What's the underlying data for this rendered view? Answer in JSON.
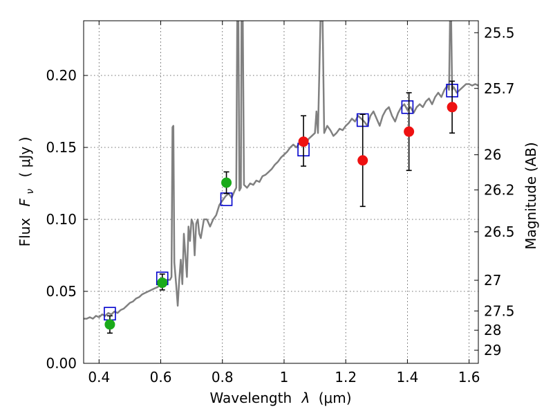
{
  "chart_data": {
    "type": "scatter",
    "xlabel_text": "Wavelength",
    "xlabel_symbol": "λ",
    "xlabel_unit": "(μm)",
    "ylabel_text": "Flux",
    "ylabel_symbol": "F",
    "ylabel_subscript": "ν",
    "ylabel_unit": "( μJy )",
    "y2label": "Magnitude (AB)",
    "xlim": [
      0.35,
      1.63
    ],
    "ylim": [
      0.0,
      0.238
    ],
    "x_ticks": [
      0.4,
      0.6,
      0.8,
      1.0,
      1.2,
      1.4,
      1.6
    ],
    "x_tick_labels": [
      "0.4",
      "0.6",
      "0.8",
      "1",
      "1.2",
      "1.4",
      "1.6"
    ],
    "y_ticks": [
      0.0,
      0.05,
      0.1,
      0.15,
      0.2
    ],
    "y_tick_labels": [
      "0.00",
      "0.05",
      "0.10",
      "0.15",
      "0.20"
    ],
    "y2_ticks": [
      {
        "label": "25.5",
        "flux": 0.2297
      },
      {
        "label": "25.7",
        "flux": 0.191
      },
      {
        "label": "26",
        "flux": 0.1449
      },
      {
        "label": "26.2",
        "flux": 0.1205
      },
      {
        "label": "26.5",
        "flux": 0.0914
      },
      {
        "label": "27",
        "flux": 0.0577
      },
      {
        "label": "27.5",
        "flux": 0.0364
      },
      {
        "label": "28",
        "flux": 0.023
      },
      {
        "label": "29",
        "flux": 0.0091
      }
    ],
    "grid": true,
    "series": [
      {
        "kind": "line",
        "color": "#808080",
        "points": [
          [
            0.35,
            0.031
          ],
          [
            0.36,
            0.031
          ],
          [
            0.37,
            0.032
          ],
          [
            0.38,
            0.031
          ],
          [
            0.39,
            0.033
          ],
          [
            0.4,
            0.032
          ],
          [
            0.41,
            0.034
          ],
          [
            0.42,
            0.033
          ],
          [
            0.43,
            0.035
          ],
          [
            0.44,
            0.034
          ],
          [
            0.45,
            0.036
          ],
          [
            0.46,
            0.035
          ],
          [
            0.47,
            0.037
          ],
          [
            0.48,
            0.038
          ],
          [
            0.49,
            0.04
          ],
          [
            0.5,
            0.042
          ],
          [
            0.51,
            0.043
          ],
          [
            0.52,
            0.045
          ],
          [
            0.53,
            0.046
          ],
          [
            0.54,
            0.048
          ],
          [
            0.55,
            0.049
          ],
          [
            0.56,
            0.05
          ],
          [
            0.57,
            0.051
          ],
          [
            0.58,
            0.052
          ],
          [
            0.59,
            0.053
          ],
          [
            0.6,
            0.055
          ],
          [
            0.61,
            0.057
          ],
          [
            0.62,
            0.058
          ],
          [
            0.63,
            0.058
          ],
          [
            0.635,
            0.06
          ],
          [
            0.638,
            0.164
          ],
          [
            0.641,
            0.165
          ],
          [
            0.644,
            0.07
          ],
          [
            0.65,
            0.055
          ],
          [
            0.655,
            0.04
          ],
          [
            0.66,
            0.058
          ],
          [
            0.665,
            0.072
          ],
          [
            0.67,
            0.055
          ],
          [
            0.675,
            0.09
          ],
          [
            0.68,
            0.075
          ],
          [
            0.685,
            0.06
          ],
          [
            0.69,
            0.095
          ],
          [
            0.695,
            0.085
          ],
          [
            0.7,
            0.1
          ],
          [
            0.705,
            0.097
          ],
          [
            0.71,
            0.075
          ],
          [
            0.715,
            0.097
          ],
          [
            0.72,
            0.1
          ],
          [
            0.725,
            0.09
          ],
          [
            0.73,
            0.087
          ],
          [
            0.74,
            0.1
          ],
          [
            0.75,
            0.1
          ],
          [
            0.76,
            0.095
          ],
          [
            0.77,
            0.1
          ],
          [
            0.78,
            0.103
          ],
          [
            0.79,
            0.11
          ],
          [
            0.8,
            0.113
          ],
          [
            0.81,
            0.116
          ],
          [
            0.82,
            0.118
          ],
          [
            0.83,
            0.115
          ],
          [
            0.84,
            0.12
          ],
          [
            0.845,
            0.122
          ],
          [
            0.848,
            0.24
          ],
          [
            0.852,
            0.24
          ],
          [
            0.855,
            0.12
          ],
          [
            0.86,
            0.122
          ],
          [
            0.862,
            0.24
          ],
          [
            0.866,
            0.24
          ],
          [
            0.87,
            0.124
          ],
          [
            0.88,
            0.122
          ],
          [
            0.89,
            0.125
          ],
          [
            0.9,
            0.124
          ],
          [
            0.91,
            0.127
          ],
          [
            0.92,
            0.126
          ],
          [
            0.93,
            0.13
          ],
          [
            0.94,
            0.131
          ],
          [
            0.95,
            0.133
          ],
          [
            0.96,
            0.135
          ],
          [
            0.97,
            0.138
          ],
          [
            0.98,
            0.14
          ],
          [
            0.99,
            0.143
          ],
          [
            1.0,
            0.145
          ],
          [
            1.01,
            0.147
          ],
          [
            1.02,
            0.15
          ],
          [
            1.03,
            0.152
          ],
          [
            1.04,
            0.15
          ],
          [
            1.05,
            0.153
          ],
          [
            1.06,
            0.155
          ],
          [
            1.07,
            0.152
          ],
          [
            1.08,
            0.156
          ],
          [
            1.09,
            0.158
          ],
          [
            1.1,
            0.16
          ],
          [
            1.105,
            0.175
          ],
          [
            1.11,
            0.16
          ],
          [
            1.118,
            0.238
          ],
          [
            1.125,
            0.238
          ],
          [
            1.13,
            0.16
          ],
          [
            1.14,
            0.165
          ],
          [
            1.15,
            0.162
          ],
          [
            1.16,
            0.158
          ],
          [
            1.17,
            0.16
          ],
          [
            1.18,
            0.163
          ],
          [
            1.19,
            0.162
          ],
          [
            1.2,
            0.165
          ],
          [
            1.21,
            0.167
          ],
          [
            1.22,
            0.17
          ],
          [
            1.23,
            0.168
          ],
          [
            1.24,
            0.172
          ],
          [
            1.25,
            0.17
          ],
          [
            1.26,
            0.168
          ],
          [
            1.27,
            0.165
          ],
          [
            1.28,
            0.172
          ],
          [
            1.29,
            0.175
          ],
          [
            1.3,
            0.17
          ],
          [
            1.31,
            0.165
          ],
          [
            1.32,
            0.172
          ],
          [
            1.33,
            0.176
          ],
          [
            1.34,
            0.178
          ],
          [
            1.35,
            0.172
          ],
          [
            1.36,
            0.168
          ],
          [
            1.37,
            0.174
          ],
          [
            1.38,
            0.178
          ],
          [
            1.39,
            0.18
          ],
          [
            1.4,
            0.176
          ],
          [
            1.41,
            0.178
          ],
          [
            1.42,
            0.174
          ],
          [
            1.43,
            0.178
          ],
          [
            1.44,
            0.18
          ],
          [
            1.45,
            0.178
          ],
          [
            1.46,
            0.182
          ],
          [
            1.47,
            0.184
          ],
          [
            1.48,
            0.18
          ],
          [
            1.49,
            0.185
          ],
          [
            1.5,
            0.188
          ],
          [
            1.51,
            0.185
          ],
          [
            1.52,
            0.19
          ],
          [
            1.53,
            0.193
          ],
          [
            1.535,
            0.19
          ],
          [
            1.538,
            0.238
          ],
          [
            1.542,
            0.238
          ],
          [
            1.545,
            0.19
          ],
          [
            1.55,
            0.192
          ],
          [
            1.56,
            0.188
          ],
          [
            1.57,
            0.19
          ],
          [
            1.58,
            0.192
          ],
          [
            1.59,
            0.194
          ],
          [
            1.6,
            0.194
          ],
          [
            1.61,
            0.193
          ],
          [
            1.62,
            0.194
          ],
          [
            1.63,
            0.193
          ]
        ]
      },
      {
        "kind": "open-square",
        "color": "#0000cc",
        "points": [
          [
            0.435,
            0.0345
          ],
          [
            0.605,
            0.059
          ],
          [
            0.813,
            0.114
          ],
          [
            1.063,
            0.1485
          ],
          [
            1.255,
            0.169
          ],
          [
            1.4,
            0.178
          ],
          [
            1.545,
            0.1895
          ]
        ]
      },
      {
        "kind": "filled-circle",
        "color": "#1aaa1a",
        "points": [
          {
            "x": 0.435,
            "y": 0.027,
            "err_low": 0.021,
            "err_high": 0.033
          },
          {
            "x": 0.605,
            "y": 0.056,
            "err_low": 0.051,
            "err_high": 0.062
          },
          {
            "x": 0.813,
            "y": 0.1255,
            "err_low": 0.118,
            "err_high": 0.133
          }
        ]
      },
      {
        "kind": "filled-circle",
        "color": "#ee1111",
        "points": [
          {
            "x": 1.063,
            "y": 0.154,
            "err_low": 0.137,
            "err_high": 0.172
          },
          {
            "x": 1.255,
            "y": 0.141,
            "err_low": 0.109,
            "err_high": 0.173
          },
          {
            "x": 1.405,
            "y": 0.161,
            "err_low": 0.134,
            "err_high": 0.188
          },
          {
            "x": 1.545,
            "y": 0.178,
            "err_low": 0.16,
            "err_high": 0.196
          }
        ]
      }
    ]
  }
}
